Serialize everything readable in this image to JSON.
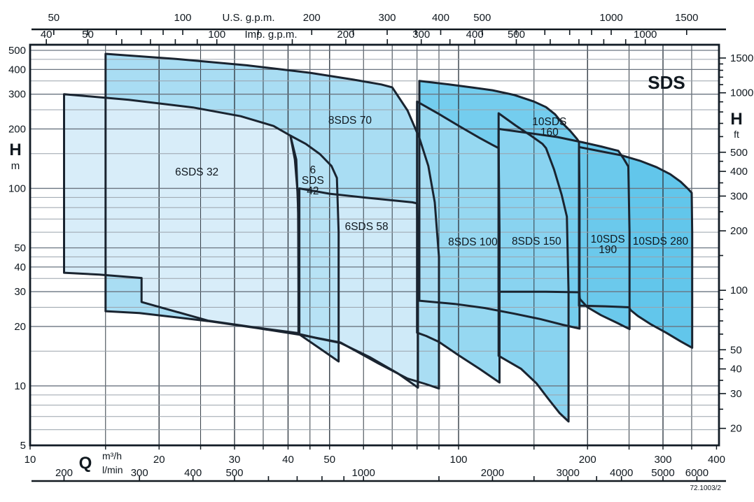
{
  "title": "SDS",
  "drawing_code": "72.1003/2",
  "axes": {
    "top_us": {
      "title": "U.S. g.p.m.",
      "factor_per_m3h": 4.403,
      "labeled": [
        50,
        100,
        200,
        300,
        400,
        500,
        1000,
        1500
      ],
      "minor": [
        60,
        70,
        80,
        90,
        150,
        250,
        350,
        600,
        700,
        800,
        900
      ]
    },
    "top_imp": {
      "title": "Imp. g.p.m.",
      "factor_per_m3h": 3.666,
      "labeled": [
        40,
        50,
        100,
        200,
        300,
        400,
        500,
        1000
      ],
      "minor": [
        60,
        70,
        80,
        90,
        150,
        250,
        350,
        600,
        700,
        800,
        900
      ]
    },
    "left": {
      "title": "H",
      "unit": "m",
      "labeled": [
        500,
        400,
        300,
        200,
        100,
        50,
        40,
        30,
        20,
        10,
        5
      ],
      "minor": [
        450,
        350,
        250,
        150,
        90,
        80,
        70,
        60,
        45,
        35,
        25,
        15,
        9,
        8,
        7,
        6
      ]
    },
    "right": {
      "title": "H",
      "unit": "ft",
      "feet_per_m": 3.2808,
      "labeled": [
        1500,
        1000,
        500,
        400,
        300,
        200,
        100,
        50,
        40,
        30,
        20
      ],
      "minor": [
        1400,
        1300,
        1200,
        1100,
        900,
        800,
        700,
        600,
        450,
        350,
        250,
        150,
        90,
        80,
        70,
        60,
        45,
        35,
        25
      ]
    },
    "bottom_m3h": {
      "title": "Q",
      "unit": "m³/h",
      "labeled": [
        10,
        20,
        30,
        40,
        50,
        100,
        200,
        300,
        400
      ],
      "minor": [
        15,
        25,
        35,
        45,
        60,
        70,
        80,
        90,
        150,
        250,
        350
      ]
    },
    "bottom_lmin": {
      "unit": "l/min",
      "lmin_per_m3h": 16.667,
      "labeled": [
        200,
        300,
        400,
        500,
        1000,
        2000,
        3000,
        4000,
        5000,
        6000
      ],
      "minor": [
        600,
        700,
        800,
        900,
        1500,
        2500,
        3500
      ]
    }
  },
  "chart_data": {
    "type": "area",
    "x_unit": "m3/h",
    "y_unit": "m",
    "log_x": true,
    "log_y": true,
    "x_range": [
      10,
      400
    ],
    "y_range": [
      5,
      533
    ],
    "series": [
      {
        "name": "10SDS 280",
        "label_lines": [
          "10SDS 280"
        ],
        "label_q": 296,
        "label_h": 54,
        "color": "#62c6eb",
        "points": [
          [
            191,
            162
          ],
          [
            215,
            154
          ],
          [
            240,
            147
          ],
          [
            265,
            138
          ],
          [
            290,
            128
          ],
          [
            312,
            118
          ],
          [
            330,
            108
          ],
          [
            344,
            99
          ],
          [
            350,
            95
          ],
          [
            351,
            60
          ],
          [
            351,
            15.6
          ],
          [
            330,
            16.8
          ],
          [
            305,
            18.6
          ],
          [
            280,
            20.6
          ],
          [
            262,
            22.6
          ],
          [
            252,
            24.2
          ],
          [
            250,
            25
          ],
          [
            220,
            25.3
          ],
          [
            191,
            25.5
          ]
        ]
      },
      {
        "name": "10SDS 190",
        "label_lines": [
          "10SDS",
          "190"
        ],
        "label_q": 223,
        "label_h": 52,
        "color": "#6bc9ec",
        "points": [
          [
            124,
            200
          ],
          [
            145,
            191
          ],
          [
            170,
            182
          ],
          [
            195,
            171
          ],
          [
            215,
            163
          ],
          [
            230,
            157
          ],
          [
            236,
            155
          ],
          [
            243,
            141
          ],
          [
            249,
            129
          ],
          [
            250.6,
            60
          ],
          [
            250.6,
            19.4
          ],
          [
            235,
            20.8
          ],
          [
            215,
            22.8
          ],
          [
            200,
            25
          ],
          [
            192,
            27.5
          ],
          [
            191,
            29.8
          ],
          [
            160,
            30
          ],
          [
            124,
            30
          ]
        ]
      },
      {
        "name": "10SDS 160",
        "label_lines": [
          "10SDS",
          "160"
        ],
        "label_q": 163,
        "label_h": 205,
        "color": "#74cdee",
        "points": [
          [
            81,
            350
          ],
          [
            95,
            336
          ],
          [
            108,
            324
          ],
          [
            120,
            314
          ],
          [
            135,
            297
          ],
          [
            150,
            275
          ],
          [
            160,
            258
          ],
          [
            168,
            237
          ],
          [
            174,
            216
          ],
          [
            182,
            196
          ],
          [
            189,
            178
          ],
          [
            191,
            172
          ],
          [
            191.6,
            90
          ],
          [
            191.6,
            19.5
          ],
          [
            175,
            20.4
          ],
          [
            155,
            21.8
          ],
          [
            135,
            23.2
          ],
          [
            115,
            24.8
          ],
          [
            98,
            26
          ],
          [
            81,
            27
          ]
        ]
      },
      {
        "name": "8SDS 150",
        "label_lines": [
          "8SDS 150"
        ],
        "label_q": 152,
        "label_h": 54,
        "color": "#89d3f0",
        "points": [
          [
            124,
            240
          ],
          [
            136,
            208
          ],
          [
            148,
            184
          ],
          [
            157,
            168
          ],
          [
            160,
            160
          ],
          [
            167,
            125
          ],
          [
            174,
            93
          ],
          [
            179,
            72
          ],
          [
            180.6,
            30
          ],
          [
            180.6,
            6.6
          ],
          [
            172,
            7.3
          ],
          [
            162,
            8.6
          ],
          [
            152,
            10.3
          ],
          [
            140,
            12.2
          ],
          [
            124,
            14.2
          ]
        ]
      },
      {
        "name": "8SDS 100",
        "label_lines": [
          "8SDS 100"
        ],
        "label_q": 108,
        "label_h": 53.5,
        "color": "#96d8f1",
        "points": [
          [
            80,
            275
          ],
          [
            90,
            238
          ],
          [
            101,
            205
          ],
          [
            112,
            180
          ],
          [
            120,
            166
          ],
          [
            124,
            160
          ],
          [
            124.6,
            60
          ],
          [
            124.6,
            10.4
          ],
          [
            112,
            12.2
          ],
          [
            100,
            14.3
          ],
          [
            90,
            16.7
          ],
          [
            84,
            17.9
          ],
          [
            80,
            18.6
          ]
        ]
      },
      {
        "name": "8SDS 70",
        "label_lines": [
          "8SDS 70"
        ],
        "label_q": 55.8,
        "label_h": 221,
        "color": "#a9ddf3",
        "points": [
          [
            15,
            480
          ],
          [
            22,
            452
          ],
          [
            32,
            420
          ],
          [
            45,
            385
          ],
          [
            57,
            355
          ],
          [
            66,
            336
          ],
          [
            70,
            325
          ],
          [
            76,
            248
          ],
          [
            81,
            180
          ],
          [
            85,
            130
          ],
          [
            88,
            85
          ],
          [
            90,
            45
          ],
          [
            90,
            9.7
          ],
          [
            84,
            10.2
          ],
          [
            76,
            10.9
          ],
          [
            65,
            13
          ],
          [
            53,
            16.6
          ],
          [
            43,
            18.1
          ],
          [
            34,
            19.6
          ],
          [
            26,
            21.3
          ],
          [
            18,
            23.4
          ],
          [
            15,
            23.9
          ]
        ]
      },
      {
        "name": "6SDS 58",
        "label_lines": [
          "6SDS 58"
        ],
        "label_q": 61,
        "label_h": 64,
        "color": "#cfeaf8",
        "points": [
          [
            42.5,
            100
          ],
          [
            50,
            94
          ],
          [
            60,
            90
          ],
          [
            70,
            87
          ],
          [
            78,
            85
          ],
          [
            80,
            84
          ],
          [
            80.4,
            40
          ],
          [
            80.4,
            9.8
          ],
          [
            72,
            11.6
          ],
          [
            62,
            14
          ],
          [
            53,
            16.5
          ],
          [
            47,
            17.4
          ],
          [
            42.5,
            18.3
          ]
        ]
      },
      {
        "name": "6SDS 42",
        "label_lines": [
          "6",
          "SDS",
          "42"
        ],
        "label_q": 45.7,
        "label_h": 110,
        "color": "#b7e2f5",
        "points": [
          [
            40.5,
            185
          ],
          [
            44,
            168
          ],
          [
            47.5,
            149
          ],
          [
            50.5,
            130
          ],
          [
            52,
            113
          ],
          [
            52.5,
            60
          ],
          [
            52.5,
            13.3
          ],
          [
            47,
            15.7
          ],
          [
            42.4,
            18.3
          ],
          [
            42.2,
            90
          ],
          [
            41.5,
            140
          ]
        ]
      },
      {
        "name": "6SDS 32",
        "label_lines": [
          "6SDS 32"
        ],
        "label_q": 24.5,
        "label_h": 121,
        "color": "#d8edf9",
        "points": [
          [
            12,
            300
          ],
          [
            17,
            281
          ],
          [
            24,
            257
          ],
          [
            31,
            232
          ],
          [
            37,
            207
          ],
          [
            40.5,
            185
          ],
          [
            41.8,
            140
          ],
          [
            42.3,
            70
          ],
          [
            42.3,
            18.5
          ],
          [
            34,
            19.7
          ],
          [
            26,
            21.4
          ],
          [
            18.2,
            26.6
          ],
          [
            18.2,
            35.2
          ],
          [
            14.5,
            36.6
          ],
          [
            12,
            37.4
          ]
        ]
      }
    ]
  }
}
